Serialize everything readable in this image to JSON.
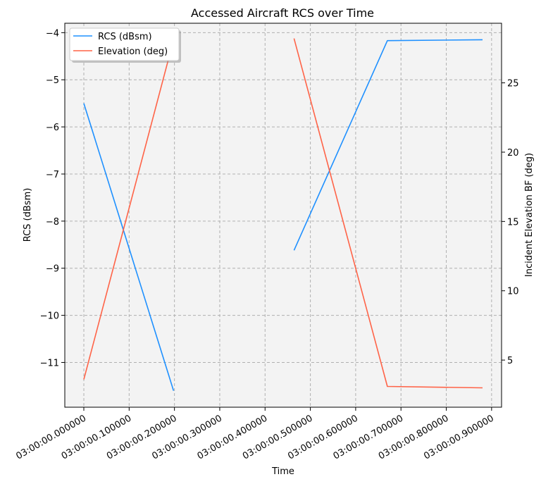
{
  "chart_data": {
    "type": "line",
    "title": "Accessed Aircraft RCS over Time",
    "xlabel": "Time",
    "ylabel": "RCS (dBsm)",
    "y2label": "Incident Elevation BF (deg)",
    "xlim": [
      -0.042,
      0.922
    ],
    "ylim": [
      -11.95,
      -3.8
    ],
    "y2lim": [
      1.6,
      29.3
    ],
    "x_ticks": [
      {
        "value": 0.0,
        "label": "03:00:00.000000"
      },
      {
        "value": 0.1,
        "label": "03:00:00.100000"
      },
      {
        "value": 0.2,
        "label": "03:00:00.200000"
      },
      {
        "value": 0.3,
        "label": "03:00:00.300000"
      },
      {
        "value": 0.4,
        "label": "03:00:00.400000"
      },
      {
        "value": 0.5,
        "label": "03:00:00.500000"
      },
      {
        "value": 0.6,
        "label": "03:00:00.600000"
      },
      {
        "value": 0.7,
        "label": "03:00:00.700000"
      },
      {
        "value": 0.8,
        "label": "03:00:00.800000"
      },
      {
        "value": 0.9,
        "label": "03:00:00.900000"
      }
    ],
    "y_ticks": [
      {
        "value": -11,
        "label": "−11"
      },
      {
        "value": -10,
        "label": "−10"
      },
      {
        "value": -9,
        "label": "−9"
      },
      {
        "value": -8,
        "label": "−8"
      },
      {
        "value": -7,
        "label": "−7"
      },
      {
        "value": -6,
        "label": "−6"
      },
      {
        "value": -5,
        "label": "−5"
      },
      {
        "value": -4,
        "label": "−4"
      }
    ],
    "y2_ticks": [
      {
        "value": 5,
        "label": "5"
      },
      {
        "value": 10,
        "label": "10"
      },
      {
        "value": 15,
        "label": "15"
      },
      {
        "value": 20,
        "label": "20"
      },
      {
        "value": 25,
        "label": "25"
      }
    ],
    "grid": true,
    "legend_position": "top-left",
    "series": [
      {
        "name": "RCS (dBsm)",
        "axis": "left",
        "color": "#1e90ff",
        "segments": [
          [
            [
              0.0,
              -5.5
            ],
            [
              0.198,
              -11.6
            ]
          ],
          [
            [
              0.464,
              -8.62
            ],
            [
              0.67,
              -4.17
            ],
            [
              0.88,
              -4.15
            ]
          ]
        ]
      },
      {
        "name": "Elevation (deg)",
        "axis": "right",
        "color": "#ff6347",
        "segments": [
          [
            [
              0.0,
              3.6
            ],
            [
              0.198,
              28.1
            ]
          ],
          [
            [
              0.464,
              28.2
            ],
            [
              0.67,
              3.1
            ],
            [
              0.88,
              3.0
            ]
          ]
        ]
      }
    ]
  }
}
